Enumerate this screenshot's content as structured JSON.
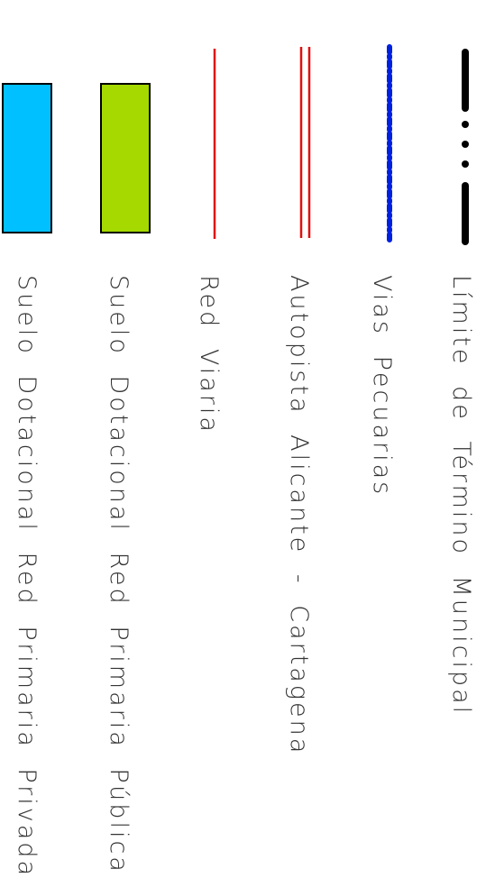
{
  "legend": {
    "items": [
      {
        "label": "Límite de Término Municipal",
        "symbol": "dash-dot-line",
        "color": "#000000"
      },
      {
        "label": "Vias Pecuarias",
        "symbol": "dotted-line",
        "color": "#0020e0"
      },
      {
        "label": "Autopista Alicante - Cartagena",
        "symbol": "double-line",
        "color": "#e01010"
      },
      {
        "label": "Red Viaria",
        "symbol": "single-line",
        "color": "#e01010"
      },
      {
        "label": "Suelo Dotacional Red Primaria Pública",
        "symbol": "filled-box",
        "color": "#a5d900"
      },
      {
        "label": "Suelo Dotacional Red Primaria Privada",
        "symbol": "filled-box",
        "color": "#00c0ff"
      }
    ]
  }
}
